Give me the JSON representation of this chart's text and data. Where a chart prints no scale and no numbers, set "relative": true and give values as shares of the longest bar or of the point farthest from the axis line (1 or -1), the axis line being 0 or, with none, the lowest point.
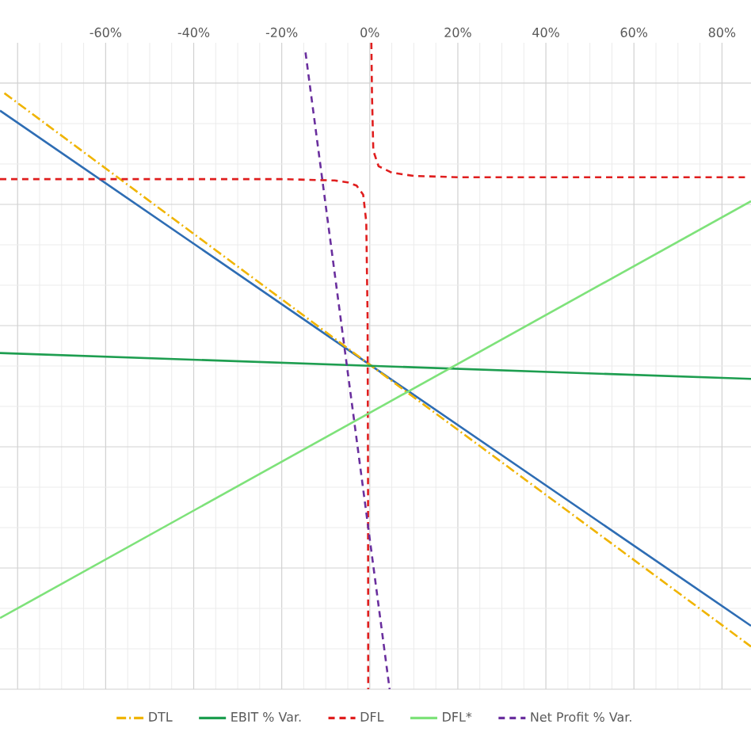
{
  "chart_data": {
    "type": "line",
    "relative": true,
    "xlim": [
      -84,
      86.6
    ],
    "xticks": [
      {
        "value": -80,
        "label": null
      },
      {
        "value": -60,
        "label": "-60%"
      },
      {
        "value": -40,
        "label": "-40%"
      },
      {
        "value": -20,
        "label": "-20%"
      },
      {
        "value": 0,
        "label": "0%"
      },
      {
        "value": 20,
        "label": "20%"
      },
      {
        "value": 40,
        "label": "40%"
      },
      {
        "value": 60,
        "label": "60%"
      },
      {
        "value": 80,
        "label": "80%"
      }
    ],
    "grid": true,
    "legend": "bottom",
    "marker": "none",
    "series": [
      {
        "color": "#2e6db4",
        "line_style": "solid",
        "x": [
          -84,
          0,
          86.6
        ],
        "values": [
          0.895,
          0.502,
          0.098
        ]
      },
      {
        "name": "DTL",
        "color": "#f0b400",
        "line_style": "dashdot",
        "x": [
          -83,
          0,
          86.6
        ],
        "values": [
          0.922,
          0.502,
          0.066
        ]
      },
      {
        "name": "EBIT % Var.",
        "color": "#1e9e50",
        "line_style": "solid",
        "x": [
          -84,
          86.6
        ],
        "values": [
          0.52,
          0.48
        ]
      },
      {
        "name": "DFL",
        "color": "#e01e1e",
        "line_style": "dashed",
        "x": [
          -84,
          -20,
          -8,
          -5,
          -3,
          -1.5,
          -0.8,
          -0.5,
          -0.4,
          -0.36,
          null,
          0.36,
          0.5,
          0.8,
          2,
          5,
          10,
          20,
          86
        ],
        "values": [
          0.789,
          0.789,
          0.787,
          0.784,
          0.779,
          0.765,
          0.723,
          0.576,
          0.331,
          0,
          null,
          1.0,
          0.919,
          0.833,
          0.809,
          0.799,
          0.794,
          0.792,
          0.792
        ]
      },
      {
        "name": "DFL*",
        "color": "#7ee27a",
        "line_style": "solid",
        "x": [
          -84,
          86.6
        ],
        "values": [
          0.11,
          0.755
        ]
      },
      {
        "name": "Net Profit % Var.",
        "color": "#6a2f9e",
        "line_style": "dashed",
        "x": [
          -14.6,
          4.5
        ],
        "values": [
          0.985,
          0
        ]
      }
    ]
  }
}
